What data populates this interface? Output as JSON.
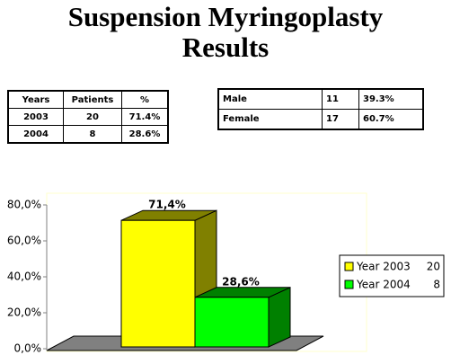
{
  "title": "Suspension Myringoplasty Results",
  "tables": [
    {
      "header": [
        "Years",
        "Patients",
        "%"
      ],
      "rows": [
        [
          "2003",
          "20",
          "71.4%"
        ],
        [
          "2004",
          "8",
          "28.6%"
        ]
      ]
    },
    {
      "rows": [
        [
          "Male",
          "11",
          "39.3%"
        ],
        [
          "Female",
          "17",
          "60.7%"
        ]
      ]
    }
  ],
  "chart_data": {
    "type": "bar3d",
    "series": [
      {
        "name": "Year 2003",
        "count": 20,
        "color": "#ffff00",
        "side_color": "#808000",
        "values": [
          71.4
        ],
        "value_labels": [
          "71,4%"
        ]
      },
      {
        "name": "Year 2004",
        "count": 8,
        "color": "#00ff00",
        "side_color": "#008000",
        "values": [
          28.6
        ],
        "value_labels": [
          "28,6%"
        ]
      }
    ],
    "ylim": [
      0,
      80
    ],
    "yticks": [
      {
        "value": 0,
        "label": "0,0%"
      },
      {
        "value": 20,
        "label": "20,0%"
      },
      {
        "value": 40,
        "label": "40,0%"
      },
      {
        "value": 60,
        "label": "60,0%"
      },
      {
        "value": 80,
        "label": "80,0%"
      }
    ],
    "legend": "right"
  }
}
